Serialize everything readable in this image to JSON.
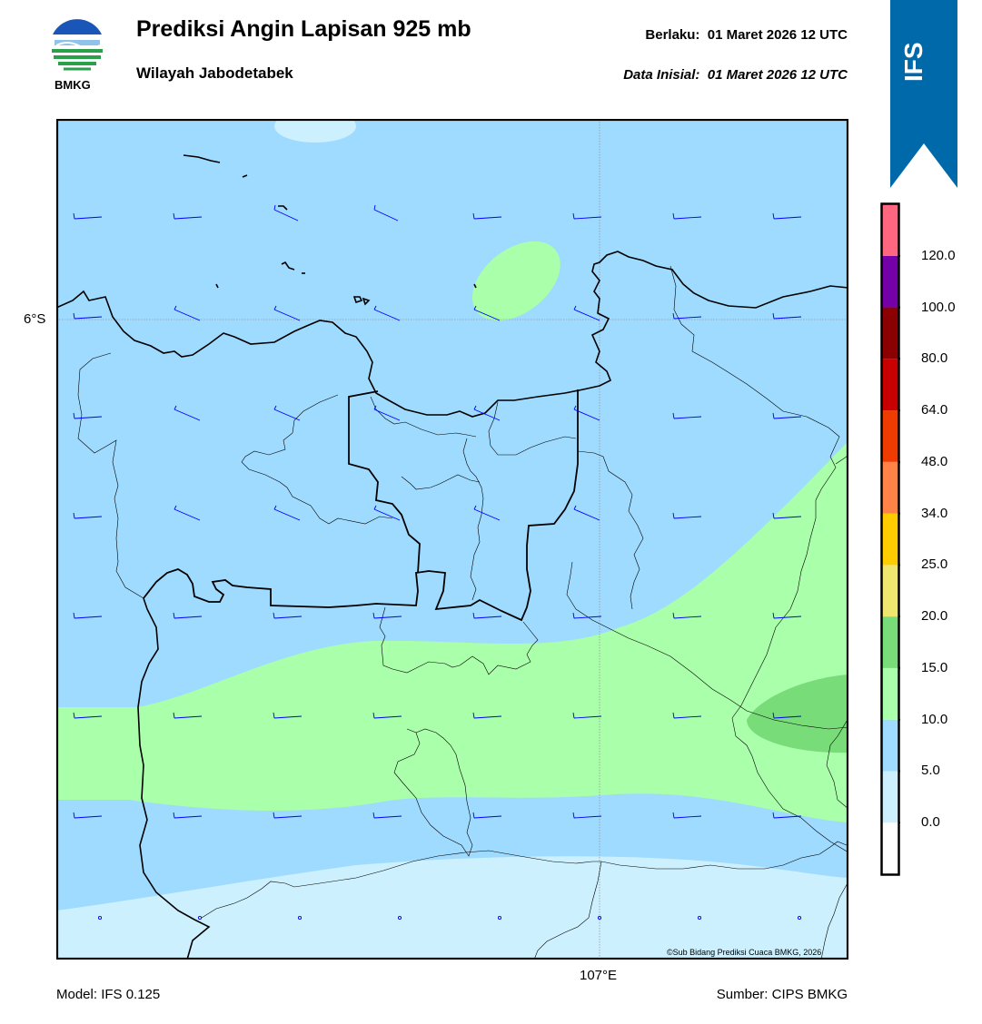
{
  "header": {
    "title": "Prediksi Angin Lapisan 925 mb",
    "subtitle": "Wilayah Jabodetabek",
    "valid": "Berlaku:  01 Maret 2026 12 UTC",
    "initial": "Data Inisial:  01 Maret 2026 12 UTC",
    "logo_text": "BMKG"
  },
  "map": {
    "lat_label": "6°S",
    "lon_label": "107°E",
    "credit": "©Sub Bidang Prediksi Cuaca BMKG, 2026",
    "wind_color": "#0000ff",
    "land_outline_color": "#000000"
  },
  "badge": {
    "text": "IFS",
    "color": "#0069aa"
  },
  "footer": {
    "model": "Model: IFS 0.125",
    "source": "Sumber: CIPS BMKG"
  },
  "colorbar": {
    "labels": [
      "0.0",
      "5.0",
      "10.0",
      "15.0",
      "20.0",
      "25.0",
      "34.0",
      "48.0",
      "64.0",
      "80.0",
      "100.0",
      "120.0"
    ],
    "colors": [
      "#ffffff",
      "#cdf0ff",
      "#9fdaff",
      "#aaffaa",
      "#78dc78",
      "#eee66e",
      "#ffcc00",
      "#ff8247",
      "#ee3b00",
      "#c80000",
      "#8b0000",
      "#7400a8",
      "#ff6680"
    ]
  }
}
